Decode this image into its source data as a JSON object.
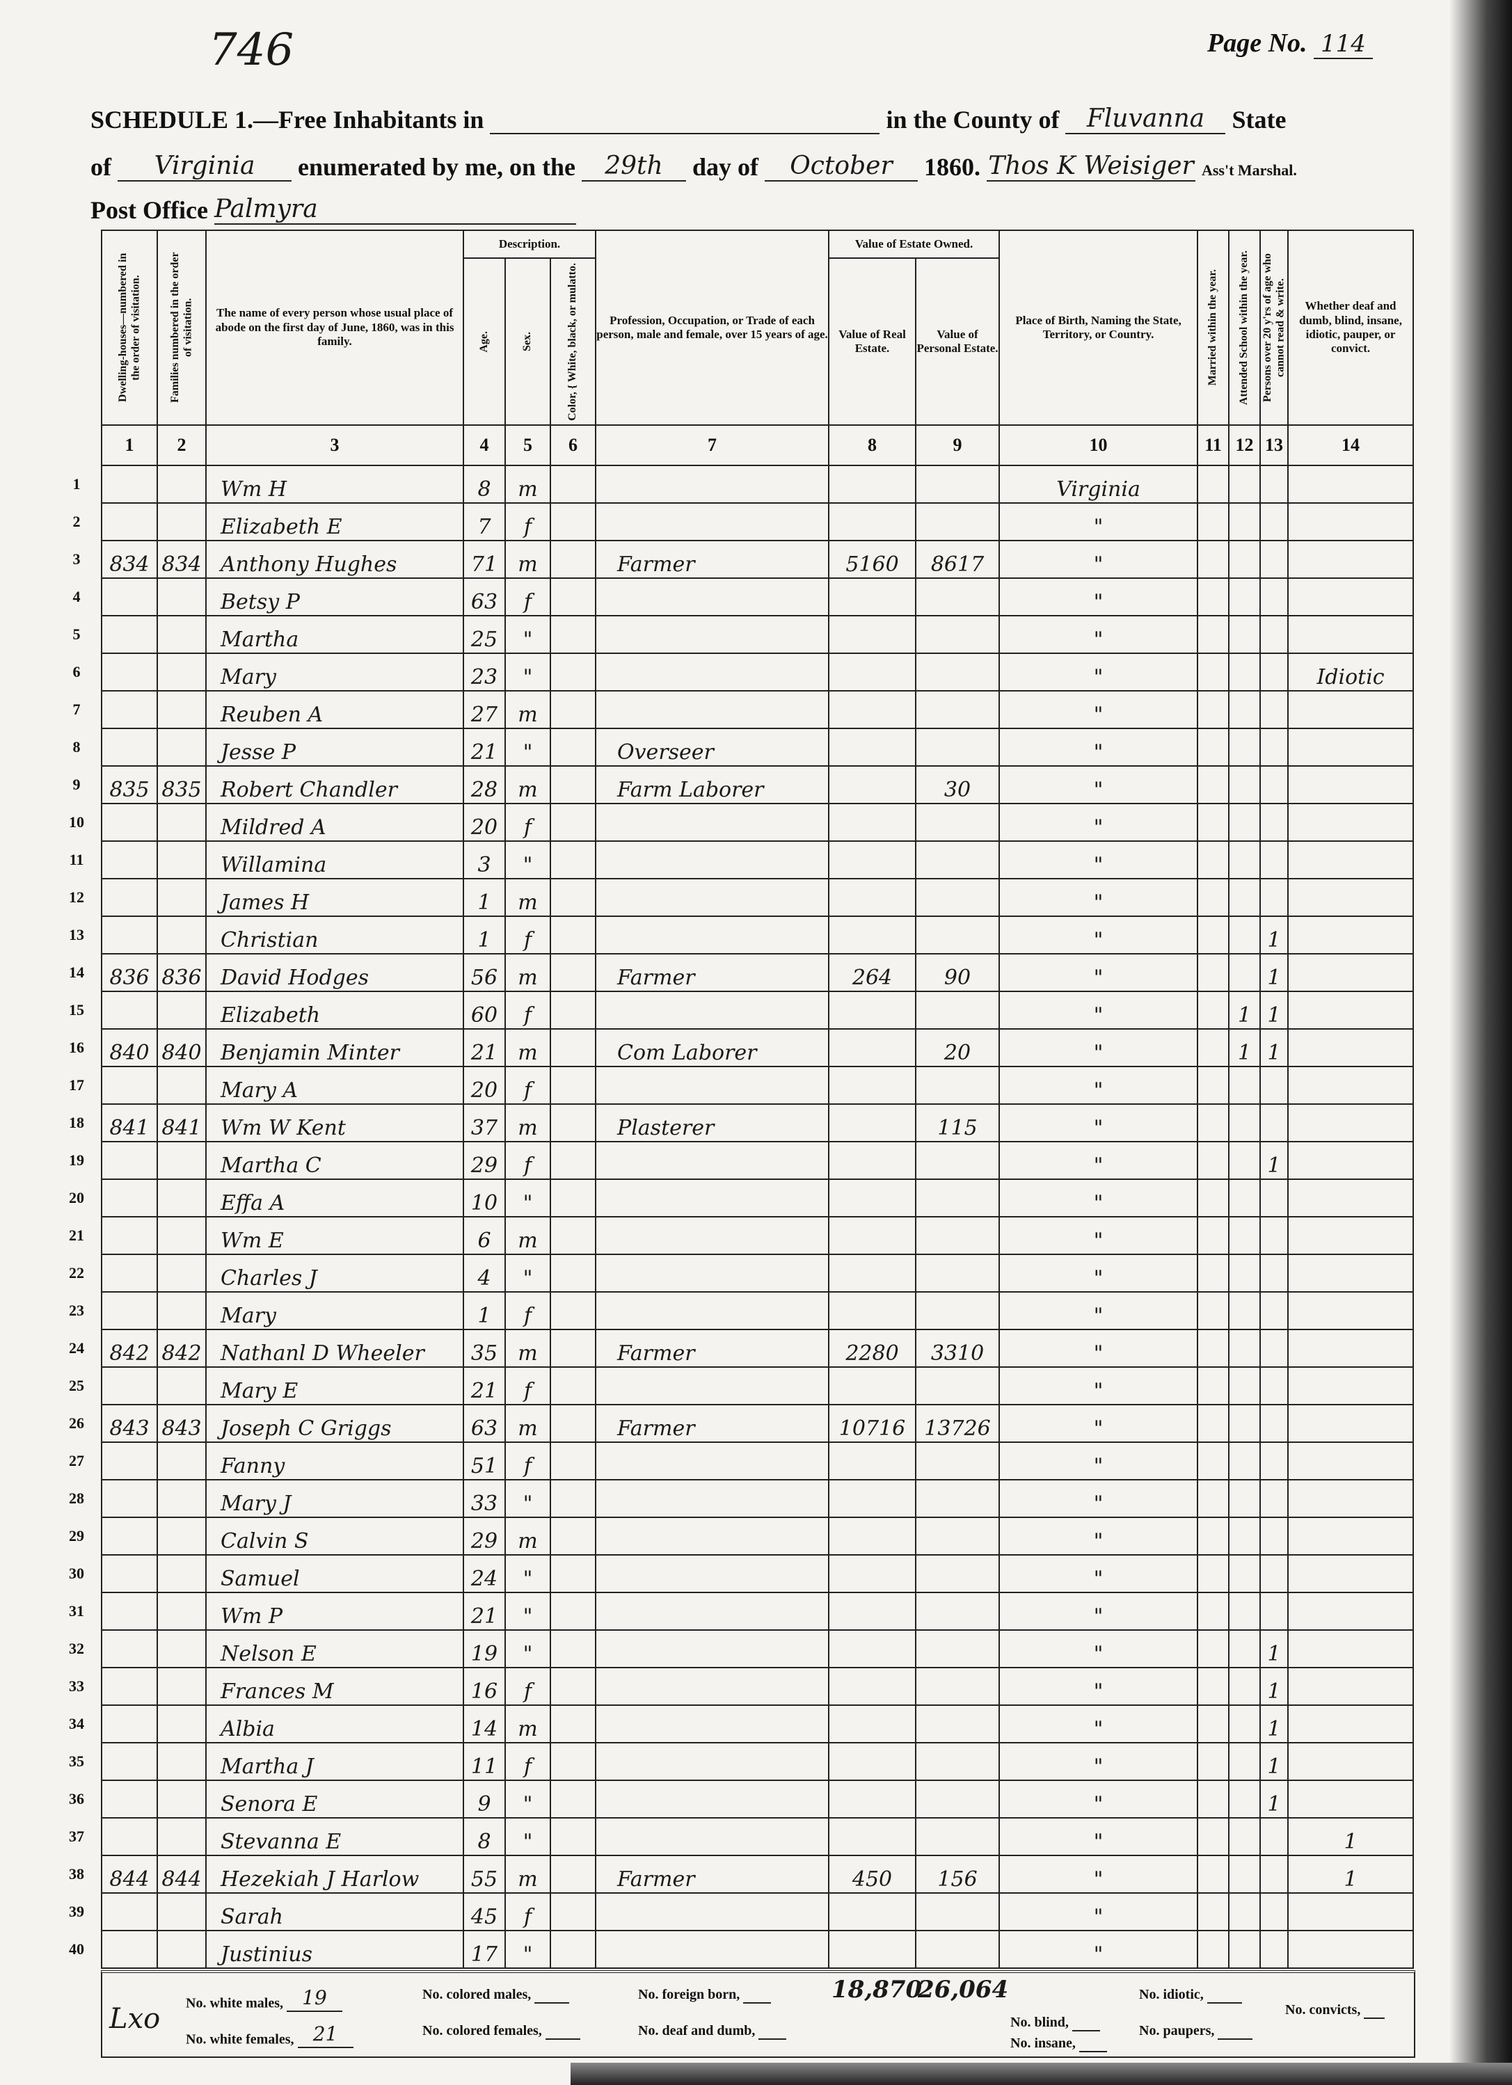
{
  "stamp_number": "746",
  "page": {
    "label": "Page No.",
    "value": "114"
  },
  "header": {
    "schedule_label": "SCHEDULE 1.—Free Inhabitants in",
    "place": "",
    "county_label": "in the County of",
    "county": "Fluvanna",
    "state_label": "State",
    "of_label": "of",
    "state": "Virginia",
    "enumerated_label": "enumerated by me, on the",
    "day": "29th",
    "day_of_label": "day of",
    "month": "October",
    "year": "1860.",
    "marshal": "Thos K Weisiger",
    "marshal_label": "Ass't Marshal.",
    "post_office_label": "Post Office",
    "post_office": "Palmyra"
  },
  "columns": {
    "c1": "Dwelling-houses—numbered in the order of visitation.",
    "c2": "Families numbered in the order of visitation.",
    "c3": "The name of every person whose usual place of abode on the first day of June, 1860, was in this family.",
    "description": "Description.",
    "c4": "Age.",
    "c5": "Sex.",
    "c6": "Color, { White, black, or mulatto.",
    "c7": "Profession, Occupation, or Trade of each person, male and female, over 15 years of age.",
    "estate": "Value of Estate Owned.",
    "c8": "Value of Real Estate.",
    "c9": "Value of Personal Estate.",
    "c10": "Place of Birth, Naming the State, Territory, or Country.",
    "c11": "Married within the year.",
    "c12": "Attended School within the year.",
    "c13": "Persons over 20 y'rs of age who cannot read & write.",
    "c14": "Whether deaf and dumb, blind, insane, idiotic, pauper, or convict.",
    "numbers": [
      "1",
      "2",
      "3",
      "4",
      "5",
      "6",
      "7",
      "8",
      "9",
      "10",
      "11",
      "12",
      "13",
      "14"
    ]
  },
  "rows": [
    {
      "line": "1",
      "dw": "",
      "fam": "",
      "name": "Wm H",
      "age": "8",
      "sex": "m",
      "occ": "",
      "real": "",
      "pers": "",
      "birth": "Virginia",
      "c11": "",
      "c12": "",
      "c13": "",
      "c14": ""
    },
    {
      "line": "2",
      "dw": "",
      "fam": "",
      "name": "Elizabeth E",
      "age": "7",
      "sex": "f",
      "occ": "",
      "real": "",
      "pers": "",
      "birth": "\"",
      "c11": "",
      "c12": "",
      "c13": "",
      "c14": ""
    },
    {
      "line": "3",
      "dw": "834",
      "fam": "834",
      "name": "Anthony Hughes",
      "age": "71",
      "sex": "m",
      "occ": "Farmer",
      "real": "5160",
      "pers": "8617",
      "birth": "\"",
      "c11": "",
      "c12": "",
      "c13": "",
      "c14": ""
    },
    {
      "line": "4",
      "dw": "",
      "fam": "",
      "name": "Betsy P",
      "age": "63",
      "sex": "f",
      "occ": "",
      "real": "",
      "pers": "",
      "birth": "\"",
      "c11": "",
      "c12": "",
      "c13": "",
      "c14": ""
    },
    {
      "line": "5",
      "dw": "",
      "fam": "",
      "name": "Martha",
      "age": "25",
      "sex": "\"",
      "occ": "",
      "real": "",
      "pers": "",
      "birth": "\"",
      "c11": "",
      "c12": "",
      "c13": "",
      "c14": ""
    },
    {
      "line": "6",
      "dw": "",
      "fam": "",
      "name": "Mary",
      "age": "23",
      "sex": "\"",
      "occ": "",
      "real": "",
      "pers": "",
      "birth": "\"",
      "c11": "",
      "c12": "",
      "c13": "",
      "c14": "Idiotic"
    },
    {
      "line": "7",
      "dw": "",
      "fam": "",
      "name": "Reuben A",
      "age": "27",
      "sex": "m",
      "occ": "",
      "real": "",
      "pers": "",
      "birth": "\"",
      "c11": "",
      "c12": "",
      "c13": "",
      "c14": ""
    },
    {
      "line": "8",
      "dw": "",
      "fam": "",
      "name": "Jesse P",
      "age": "21",
      "sex": "\"",
      "occ": "Overseer",
      "real": "",
      "pers": "",
      "birth": "\"",
      "c11": "",
      "c12": "",
      "c13": "",
      "c14": ""
    },
    {
      "line": "9",
      "dw": "835",
      "fam": "835",
      "name": "Robert Chandler",
      "age": "28",
      "sex": "m",
      "occ": "Farm Laborer",
      "real": "",
      "pers": "30",
      "birth": "\"",
      "c11": "",
      "c12": "",
      "c13": "",
      "c14": ""
    },
    {
      "line": "10",
      "dw": "",
      "fam": "",
      "name": "Mildred A",
      "age": "20",
      "sex": "f",
      "occ": "",
      "real": "",
      "pers": "",
      "birth": "\"",
      "c11": "",
      "c12": "",
      "c13": "",
      "c14": ""
    },
    {
      "line": "11",
      "dw": "",
      "fam": "",
      "name": "Willamina",
      "age": "3",
      "sex": "\"",
      "occ": "",
      "real": "",
      "pers": "",
      "birth": "\"",
      "c11": "",
      "c12": "",
      "c13": "",
      "c14": ""
    },
    {
      "line": "12",
      "dw": "",
      "fam": "",
      "name": "James H",
      "age": "1",
      "sex": "m",
      "occ": "",
      "real": "",
      "pers": "",
      "birth": "\"",
      "c11": "",
      "c12": "",
      "c13": "",
      "c14": ""
    },
    {
      "line": "13",
      "dw": "",
      "fam": "",
      "name": "Christian",
      "age": "1",
      "sex": "f",
      "occ": "",
      "real": "",
      "pers": "",
      "birth": "\"",
      "c11": "",
      "c12": "",
      "c13": "1",
      "c14": ""
    },
    {
      "line": "14",
      "dw": "836",
      "fam": "836",
      "name": "David Hodges",
      "age": "56",
      "sex": "m",
      "occ": "Farmer",
      "real": "264",
      "pers": "90",
      "birth": "\"",
      "c11": "",
      "c12": "",
      "c13": "1",
      "c14": ""
    },
    {
      "line": "15",
      "dw": "",
      "fam": "",
      "name": "Elizabeth",
      "age": "60",
      "sex": "f",
      "occ": "",
      "real": "",
      "pers": "",
      "birth": "\"",
      "c11": "",
      "c12": "1",
      "c13": "1",
      "c14": ""
    },
    {
      "line": "16",
      "dw": "840",
      "fam": "840",
      "name": "Benjamin Minter",
      "age": "21",
      "sex": "m",
      "occ": "Com Laborer",
      "real": "",
      "pers": "20",
      "birth": "\"",
      "c11": "",
      "c12": "1",
      "c13": "1",
      "c14": ""
    },
    {
      "line": "17",
      "dw": "",
      "fam": "",
      "name": "Mary A",
      "age": "20",
      "sex": "f",
      "occ": "",
      "real": "",
      "pers": "",
      "birth": "\"",
      "c11": "",
      "c12": "",
      "c13": "",
      "c14": ""
    },
    {
      "line": "18",
      "dw": "841",
      "fam": "841",
      "name": "Wm W Kent",
      "age": "37",
      "sex": "m",
      "occ": "Plasterer",
      "real": "",
      "pers": "115",
      "birth": "\"",
      "c11": "",
      "c12": "",
      "c13": "",
      "c14": ""
    },
    {
      "line": "19",
      "dw": "",
      "fam": "",
      "name": "Martha C",
      "age": "29",
      "sex": "f",
      "occ": "",
      "real": "",
      "pers": "",
      "birth": "\"",
      "c11": "",
      "c12": "",
      "c13": "1",
      "c14": ""
    },
    {
      "line": "20",
      "dw": "",
      "fam": "",
      "name": "Effa A",
      "age": "10",
      "sex": "\"",
      "occ": "",
      "real": "",
      "pers": "",
      "birth": "\"",
      "c11": "",
      "c12": "",
      "c13": "",
      "c14": ""
    },
    {
      "line": "21",
      "dw": "",
      "fam": "",
      "name": "Wm E",
      "age": "6",
      "sex": "m",
      "occ": "",
      "real": "",
      "pers": "",
      "birth": "\"",
      "c11": "",
      "c12": "",
      "c13": "",
      "c14": ""
    },
    {
      "line": "22",
      "dw": "",
      "fam": "",
      "name": "Charles J",
      "age": "4",
      "sex": "\"",
      "occ": "",
      "real": "",
      "pers": "",
      "birth": "\"",
      "c11": "",
      "c12": "",
      "c13": "",
      "c14": ""
    },
    {
      "line": "23",
      "dw": "",
      "fam": "",
      "name": "Mary",
      "age": "1",
      "sex": "f",
      "occ": "",
      "real": "",
      "pers": "",
      "birth": "\"",
      "c11": "",
      "c12": "",
      "c13": "",
      "c14": ""
    },
    {
      "line": "24",
      "dw": "842",
      "fam": "842",
      "name": "Nathanl D Wheeler",
      "age": "35",
      "sex": "m",
      "occ": "Farmer",
      "real": "2280",
      "pers": "3310",
      "birth": "\"",
      "c11": "",
      "c12": "",
      "c13": "",
      "c14": ""
    },
    {
      "line": "25",
      "dw": "",
      "fam": "",
      "name": "Mary E",
      "age": "21",
      "sex": "f",
      "occ": "",
      "real": "",
      "pers": "",
      "birth": "\"",
      "c11": "",
      "c12": "",
      "c13": "",
      "c14": ""
    },
    {
      "line": "26",
      "dw": "843",
      "fam": "843",
      "name": "Joseph C Griggs",
      "age": "63",
      "sex": "m",
      "occ": "Farmer",
      "real": "10716",
      "pers": "13726",
      "birth": "\"",
      "c11": "",
      "c12": "",
      "c13": "",
      "c14": ""
    },
    {
      "line": "27",
      "dw": "",
      "fam": "",
      "name": "Fanny",
      "age": "51",
      "sex": "f",
      "occ": "",
      "real": "",
      "pers": "",
      "birth": "\"",
      "c11": "",
      "c12": "",
      "c13": "",
      "c14": ""
    },
    {
      "line": "28",
      "dw": "",
      "fam": "",
      "name": "Mary J",
      "age": "33",
      "sex": "\"",
      "occ": "",
      "real": "",
      "pers": "",
      "birth": "\"",
      "c11": "",
      "c12": "",
      "c13": "",
      "c14": ""
    },
    {
      "line": "29",
      "dw": "",
      "fam": "",
      "name": "Calvin S",
      "age": "29",
      "sex": "m",
      "occ": "",
      "real": "",
      "pers": "",
      "birth": "\"",
      "c11": "",
      "c12": "",
      "c13": "",
      "c14": ""
    },
    {
      "line": "30",
      "dw": "",
      "fam": "",
      "name": "Samuel",
      "age": "24",
      "sex": "\"",
      "occ": "",
      "real": "",
      "pers": "",
      "birth": "\"",
      "c11": "",
      "c12": "",
      "c13": "",
      "c14": ""
    },
    {
      "line": "31",
      "dw": "",
      "fam": "",
      "name": "Wm P",
      "age": "21",
      "sex": "\"",
      "occ": "",
      "real": "",
      "pers": "",
      "birth": "\"",
      "c11": "",
      "c12": "",
      "c13": "",
      "c14": ""
    },
    {
      "line": "32",
      "dw": "",
      "fam": "",
      "name": "Nelson E",
      "age": "19",
      "sex": "\"",
      "occ": "",
      "real": "",
      "pers": "",
      "birth": "\"",
      "c11": "",
      "c12": "",
      "c13": "1",
      "c14": ""
    },
    {
      "line": "33",
      "dw": "",
      "fam": "",
      "name": "Frances M",
      "age": "16",
      "sex": "f",
      "occ": "",
      "real": "",
      "pers": "",
      "birth": "\"",
      "c11": "",
      "c12": "",
      "c13": "1",
      "c14": ""
    },
    {
      "line": "34",
      "dw": "",
      "fam": "",
      "name": "Albia",
      "age": "14",
      "sex": "m",
      "occ": "",
      "real": "",
      "pers": "",
      "birth": "\"",
      "c11": "",
      "c12": "",
      "c13": "1",
      "c14": ""
    },
    {
      "line": "35",
      "dw": "",
      "fam": "",
      "name": "Martha J",
      "age": "11",
      "sex": "f",
      "occ": "",
      "real": "",
      "pers": "",
      "birth": "\"",
      "c11": "",
      "c12": "",
      "c13": "1",
      "c14": ""
    },
    {
      "line": "36",
      "dw": "",
      "fam": "",
      "name": "Senora E",
      "age": "9",
      "sex": "\"",
      "occ": "",
      "real": "",
      "pers": "",
      "birth": "\"",
      "c11": "",
      "c12": "",
      "c13": "1",
      "c14": ""
    },
    {
      "line": "37",
      "dw": "",
      "fam": "",
      "name": "Stevanna E",
      "age": "8",
      "sex": "\"",
      "occ": "",
      "real": "",
      "pers": "",
      "birth": "\"",
      "c11": "",
      "c12": "",
      "c13": "",
      "c14": "1"
    },
    {
      "line": "38",
      "dw": "844",
      "fam": "844",
      "name": "Hezekiah J Harlow",
      "age": "55",
      "sex": "m",
      "occ": "Farmer",
      "real": "450",
      "pers": "156",
      "birth": "\"",
      "c11": "",
      "c12": "",
      "c13": "",
      "c14": "1"
    },
    {
      "line": "39",
      "dw": "",
      "fam": "",
      "name": "Sarah",
      "age": "45",
      "sex": "f",
      "occ": "",
      "real": "",
      "pers": "",
      "birth": "\"",
      "c11": "",
      "c12": "",
      "c13": "",
      "c14": ""
    },
    {
      "line": "40",
      "dw": "",
      "fam": "",
      "name": "Justinius",
      "age": "17",
      "sex": "\"",
      "occ": "",
      "real": "",
      "pers": "",
      "birth": "\"",
      "c11": "",
      "c12": "",
      "c13": "",
      "c14": ""
    }
  ],
  "totals": {
    "real_estate": "18,870",
    "personal_estate": "26,064"
  },
  "footer": {
    "white_males_label": "No. white males,",
    "white_males": "19",
    "white_females_label": "No. white females,",
    "white_females": "21",
    "colored_males_label": "No. colored males,",
    "colored_females_label": "No. colored females,",
    "foreign_born_label": "No. foreign born,",
    "deaf_dumb_label": "No. deaf and dumb,",
    "blind_label": "No. blind,",
    "insane_label": "No. insane,",
    "idiotic_label": "No. idiotic,",
    "paupers_label": "No. paupers,",
    "convicts_label": "No. convicts,",
    "margin_note": "Lxo"
  }
}
